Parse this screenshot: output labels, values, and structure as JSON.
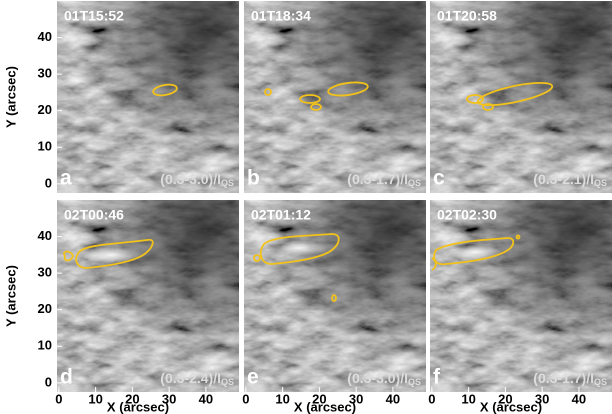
{
  "chart_data": [
    {
      "type": "image",
      "title": "01T15:52",
      "panel_label": "a",
      "annotation": "(0.3-3.0)/I",
      "annotation_sub": "QS",
      "xlim": [
        -0.5,
        49
      ],
      "ylim": [
        -2.5,
        50
      ],
      "yticks": [
        0,
        10,
        20,
        30,
        40
      ],
      "ylabel": "Y (arcsec)"
    },
    {
      "type": "image",
      "title": "01T18:34",
      "panel_label": "b",
      "annotation": "(0.3-1.7)/I",
      "annotation_sub": "QS",
      "xlim": [
        -0.5,
        49
      ],
      "ylim": [
        -2.5,
        50
      ]
    },
    {
      "type": "image",
      "title": "01T20:58",
      "panel_label": "c",
      "annotation": "(0.3-2.1)/I",
      "annotation_sub": "QS",
      "xlim": [
        -0.5,
        49
      ],
      "ylim": [
        -2.5,
        50
      ]
    },
    {
      "type": "image",
      "title": "02T00:46",
      "panel_label": "d",
      "annotation": "(0.3-2.4)/I",
      "annotation_sub": "QS",
      "xlim": [
        -0.5,
        49
      ],
      "ylim": [
        -2.5,
        50
      ],
      "yticks": [
        0,
        10,
        20,
        30,
        40
      ],
      "ylabel": "Y (arcsec)",
      "xticks": [
        0,
        10,
        20,
        30,
        40
      ],
      "xlabel": "X (arcsec)"
    },
    {
      "type": "image",
      "title": "02T01:12",
      "panel_label": "e",
      "annotation": "(0.3-3.0)/I",
      "annotation_sub": "QS",
      "xlim": [
        -0.5,
        49
      ],
      "ylim": [
        -2.5,
        50
      ],
      "xticks": [
        0,
        10,
        20,
        30,
        40
      ],
      "xlabel": "X (arcsec)"
    },
    {
      "type": "image",
      "title": "02T02:30",
      "panel_label": "f",
      "annotation": "(0.3-1.7)/I",
      "annotation_sub": "QS",
      "xlim": [
        -0.5,
        49
      ],
      "ylim": [
        -2.5,
        50
      ],
      "xticks": [
        0,
        10,
        20,
        30,
        40
      ],
      "xlabel": "X (arcsec)"
    }
  ]
}
